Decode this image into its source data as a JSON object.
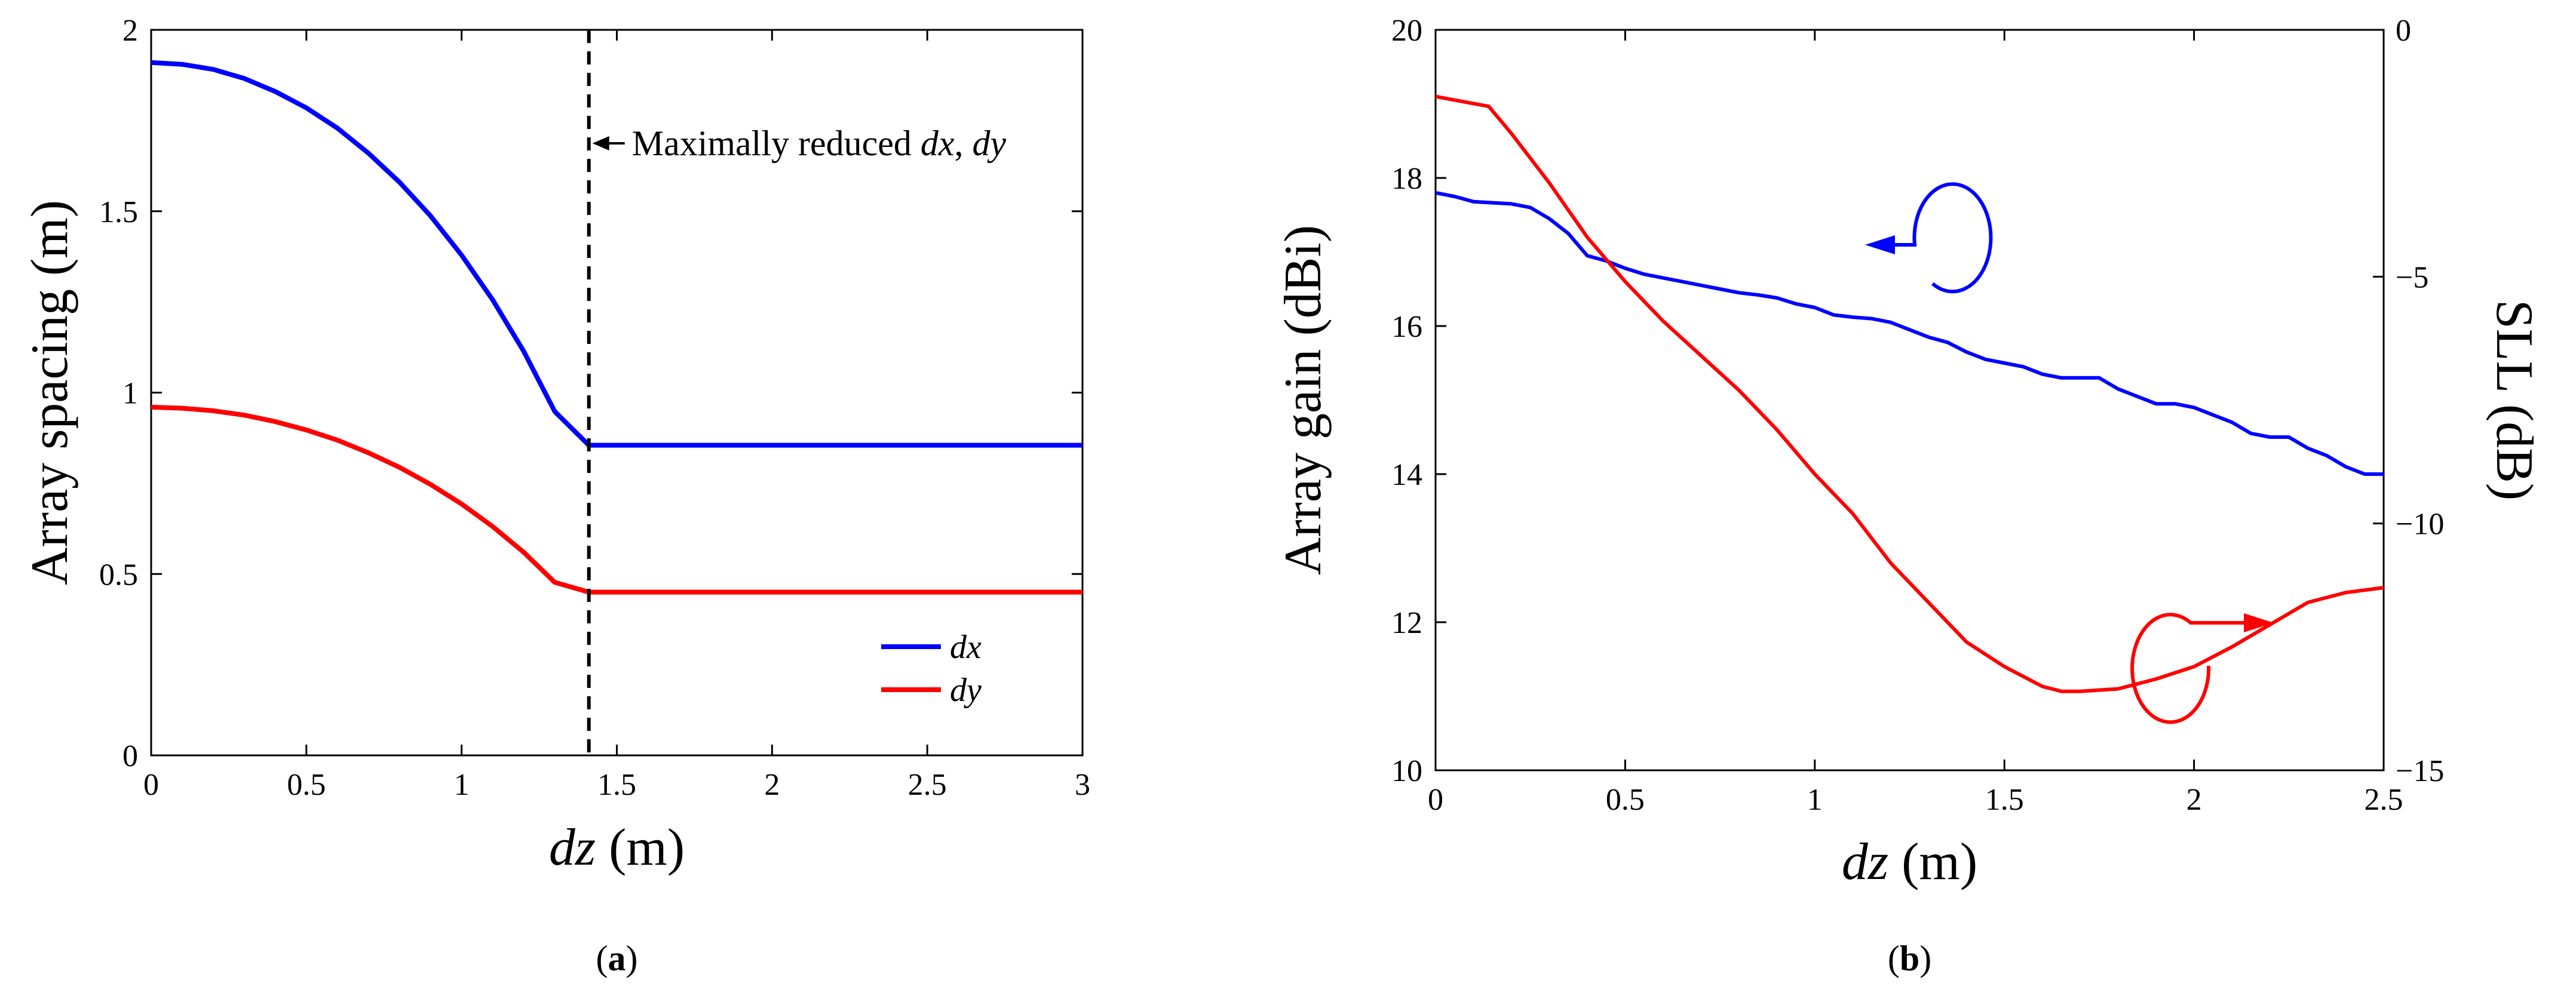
{
  "figure": {
    "panel_a_label_open": "(",
    "panel_a_label_letter": "a",
    "panel_a_label_close": ")",
    "panel_b_label_open": "(",
    "panel_b_label_letter": "b",
    "panel_b_label_close": ")"
  },
  "chart_data": [
    {
      "type": "line",
      "panel": "a",
      "xlabel_italic": "dz",
      "xlabel_rest": " (m)",
      "ylabel": "Array spacing (m)",
      "xlim": [
        0,
        3
      ],
      "ylim": [
        0,
        2
      ],
      "xticks": [
        "0",
        "0.5",
        "1",
        "1.5",
        "2",
        "2.5",
        "3"
      ],
      "yticks": [
        "0",
        "0.5",
        "1",
        "1.5",
        "2"
      ],
      "annotation": {
        "text_plain": "Maximally reduced ",
        "text_italic_1": "dx",
        "text_sep": ", ",
        "text_italic_2": "dy",
        "x": 1.41
      },
      "legend": {
        "position": "bottom-right",
        "entries": [
          "dx",
          "dy"
        ]
      },
      "series": [
        {
          "name": "dx",
          "color": "#0000ff",
          "x": [
            0,
            0.1,
            0.2,
            0.3,
            0.4,
            0.5,
            0.6,
            0.7,
            0.8,
            0.9,
            1.0,
            1.1,
            1.2,
            1.3,
            1.41,
            1.5,
            2.0,
            2.5,
            3.0
          ],
          "values": [
            1.91,
            1.905,
            1.891,
            1.866,
            1.83,
            1.785,
            1.729,
            1.66,
            1.58,
            1.487,
            1.379,
            1.256,
            1.114,
            0.948,
            0.855,
            0.855,
            0.855,
            0.855,
            0.855
          ]
        },
        {
          "name": "dy",
          "color": "#ff0000",
          "x": [
            0,
            0.1,
            0.2,
            0.3,
            0.4,
            0.5,
            0.6,
            0.7,
            0.8,
            0.9,
            1.0,
            1.1,
            1.2,
            1.3,
            1.41,
            1.5,
            2.0,
            2.5,
            3.0
          ],
          "values": [
            0.96,
            0.957,
            0.95,
            0.938,
            0.92,
            0.897,
            0.869,
            0.834,
            0.794,
            0.747,
            0.693,
            0.631,
            0.56,
            0.477,
            0.45,
            0.45,
            0.45,
            0.45,
            0.45
          ]
        }
      ]
    },
    {
      "type": "line",
      "panel": "b",
      "xlabel_italic": "dz",
      "xlabel_rest": " (m)",
      "ylabel": "Array gain (dBi)",
      "y2label": "SLL (dB)",
      "xlim": [
        0,
        2.5
      ],
      "ylim": [
        10,
        20
      ],
      "y2lim": [
        -15,
        0
      ],
      "xticks": [
        "0",
        "0.5",
        "1",
        "1.5",
        "2",
        "2.5"
      ],
      "yticks": [
        "10",
        "12",
        "14",
        "16",
        "18",
        "20"
      ],
      "y2ticks": [
        "−15",
        "−10",
        "−5",
        "0"
      ],
      "series": [
        {
          "name": "Array gain",
          "axis": "left",
          "color": "#0000ff",
          "x": [
            0,
            0.05,
            0.1,
            0.2,
            0.25,
            0.3,
            0.35,
            0.4,
            0.45,
            0.5,
            0.55,
            0.6,
            0.65,
            0.7,
            0.75,
            0.8,
            0.85,
            0.9,
            0.95,
            1.0,
            1.05,
            1.1,
            1.15,
            1.2,
            1.25,
            1.3,
            1.35,
            1.4,
            1.45,
            1.5,
            1.55,
            1.6,
            1.65,
            1.7,
            1.75,
            1.8,
            1.85,
            1.9,
            1.95,
            2.0,
            2.05,
            2.1,
            2.15,
            2.2,
            2.25,
            2.3,
            2.35,
            2.4,
            2.45,
            2.5
          ],
          "values": [
            17.8,
            17.75,
            17.68,
            17.65,
            17.6,
            17.45,
            17.25,
            16.95,
            16.88,
            16.78,
            16.7,
            16.65,
            16.6,
            16.55,
            16.5,
            16.45,
            16.42,
            16.38,
            16.3,
            16.25,
            16.15,
            16.12,
            16.1,
            16.05,
            15.95,
            15.85,
            15.78,
            15.65,
            15.55,
            15.5,
            15.45,
            15.35,
            15.3,
            15.3,
            15.3,
            15.15,
            15.05,
            14.95,
            14.95,
            14.9,
            14.8,
            14.7,
            14.55,
            14.5,
            14.5,
            14.35,
            14.25,
            14.1,
            14.0,
            14.0
          ]
        },
        {
          "name": "SLL",
          "axis": "right",
          "color": "#ff0000",
          "x": [
            0,
            0.07,
            0.14,
            0.2,
            0.3,
            0.4,
            0.5,
            0.6,
            0.7,
            0.8,
            0.9,
            1.0,
            1.1,
            1.2,
            1.3,
            1.4,
            1.5,
            1.6,
            1.65,
            1.7,
            1.8,
            1.9,
            2.0,
            2.1,
            2.2,
            2.3,
            2.4,
            2.5
          ],
          "values": [
            -1.35,
            -1.45,
            -1.55,
            -2.1,
            -3.1,
            -4.2,
            -5.1,
            -5.9,
            -6.6,
            -7.3,
            -8.1,
            -9.0,
            -9.8,
            -10.8,
            -11.6,
            -12.4,
            -12.9,
            -13.3,
            -13.4,
            -13.4,
            -13.35,
            -13.15,
            -12.9,
            -12.5,
            -12.05,
            -11.6,
            -11.4,
            -11.3
          ]
        }
      ]
    }
  ]
}
